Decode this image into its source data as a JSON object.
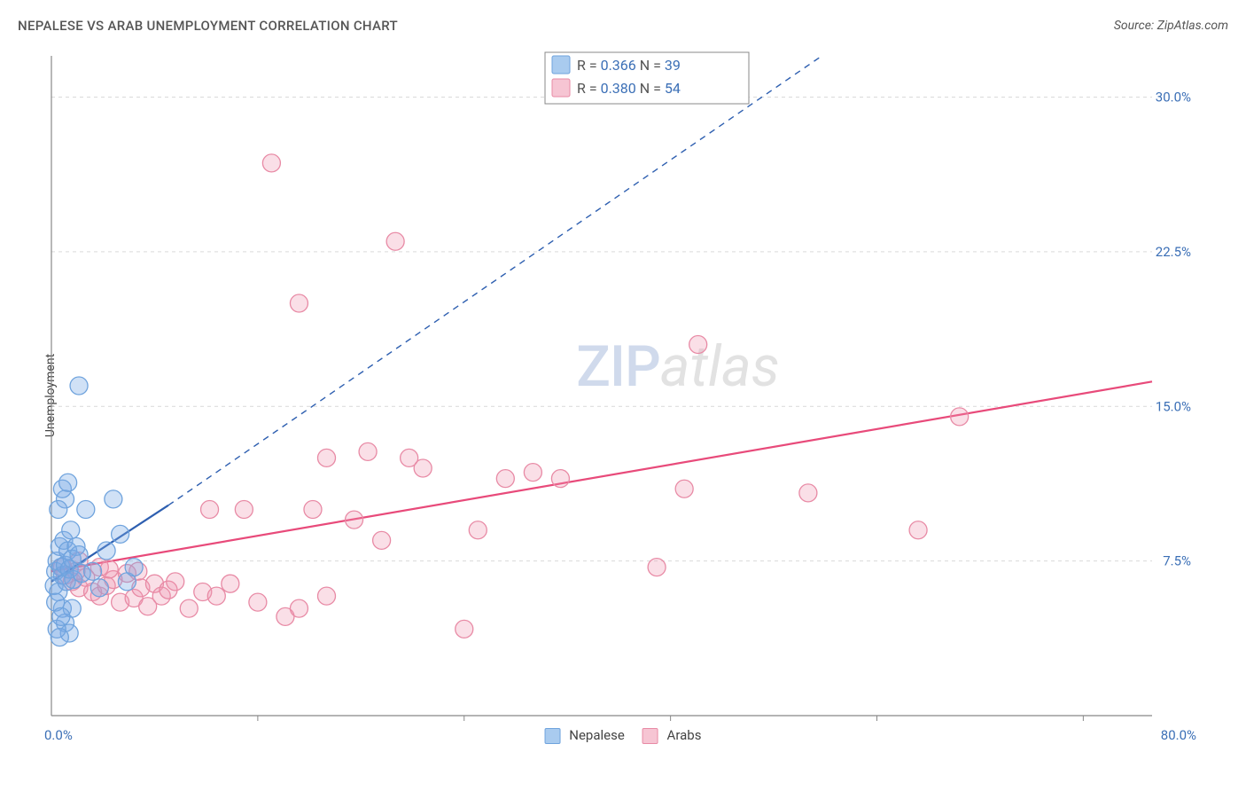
{
  "header": {
    "title": "NEPALESE VS ARAB UNEMPLOYMENT CORRELATION CHART",
    "source": "Source: ZipAtlas.com"
  },
  "ylabel": "Unemployment",
  "watermark": {
    "zip": "ZIP",
    "atlas": "atlas"
  },
  "chart": {
    "type": "scatter",
    "xlim": [
      0,
      80
    ],
    "ylim": [
      0,
      32
    ],
    "xtick_labels": {
      "min": "0.0%",
      "max": "80.0%"
    },
    "ytick_positions": [
      7.5,
      15.0,
      22.5,
      30.0
    ],
    "ytick_labels": [
      "7.5%",
      "15.0%",
      "22.5%",
      "30.0%"
    ],
    "xtick_minor": [
      15,
      30,
      45,
      60,
      75
    ],
    "grid_color": "#d9d9d9",
    "axis_color": "#888888",
    "background_color": "#ffffff",
    "marker_radius": 10,
    "marker_stroke_width": 1.3,
    "series": [
      {
        "name": "Nepalese",
        "label": "Nepalese",
        "fill": "rgba(120,170,230,0.35)",
        "stroke": "#6fa3dd",
        "swatch_fill": "#a9cbef",
        "swatch_border": "#6fa3dd",
        "R": "0.366",
        "N": "39",
        "trend": {
          "x1": 0,
          "y1": 6.5,
          "x2": 8.5,
          "y2": 10.2,
          "dashed_ext": {
            "x2": 56,
            "y2": 32
          },
          "color": "#2e5fb0",
          "width": 2.2
        },
        "points": [
          [
            0.2,
            6.3
          ],
          [
            0.3,
            7.0
          ],
          [
            0.4,
            7.5
          ],
          [
            0.5,
            6.0
          ],
          [
            0.6,
            8.2
          ],
          [
            0.7,
            7.2
          ],
          [
            0.8,
            6.8
          ],
          [
            0.9,
            8.5
          ],
          [
            1.0,
            7.3
          ],
          [
            1.1,
            6.5
          ],
          [
            1.2,
            8.0
          ],
          [
            1.3,
            7.1
          ],
          [
            1.4,
            9.0
          ],
          [
            1.5,
            7.6
          ],
          [
            1.6,
            6.6
          ],
          [
            0.8,
            5.2
          ],
          [
            1.0,
            4.5
          ],
          [
            1.3,
            4.0
          ],
          [
            0.4,
            4.2
          ],
          [
            0.6,
            3.8
          ],
          [
            1.8,
            8.2
          ],
          [
            2.0,
            7.8
          ],
          [
            2.2,
            6.9
          ],
          [
            2.5,
            10.0
          ],
          [
            3.0,
            7.0
          ],
          [
            3.5,
            6.2
          ],
          [
            4.0,
            8.0
          ],
          [
            4.5,
            10.5
          ],
          [
            5.0,
            8.8
          ],
          [
            1.0,
            10.5
          ],
          [
            0.5,
            10.0
          ],
          [
            0.8,
            11.0
          ],
          [
            1.2,
            11.3
          ],
          [
            2.0,
            16.0
          ],
          [
            5.5,
            6.5
          ],
          [
            6.0,
            7.2
          ],
          [
            0.3,
            5.5
          ],
          [
            1.5,
            5.2
          ],
          [
            0.7,
            4.8
          ]
        ]
      },
      {
        "name": "Arabs",
        "label": "Arabs",
        "fill": "rgba(240,150,175,0.30)",
        "stroke": "#e88aa5",
        "swatch_fill": "#f6c5d3",
        "swatch_border": "#e88aa5",
        "R": "0.380",
        "N": "54",
        "trend": {
          "x1": 0,
          "y1": 7.0,
          "x2": 80,
          "y2": 16.2,
          "color": "#e84a7a",
          "width": 2.2
        },
        "points": [
          [
            1.0,
            6.8
          ],
          [
            1.5,
            6.5
          ],
          [
            2.0,
            6.2
          ],
          [
            2.5,
            6.7
          ],
          [
            3.0,
            6.0
          ],
          [
            3.5,
            5.8
          ],
          [
            4.0,
            6.3
          ],
          [
            4.5,
            6.6
          ],
          [
            5.0,
            5.5
          ],
          [
            5.5,
            6.9
          ],
          [
            6.0,
            5.7
          ],
          [
            6.5,
            6.2
          ],
          [
            7.0,
            5.3
          ],
          [
            7.5,
            6.4
          ],
          [
            8.0,
            5.8
          ],
          [
            8.5,
            6.1
          ],
          [
            9.0,
            6.5
          ],
          [
            10.0,
            5.2
          ],
          [
            11.0,
            6.0
          ],
          [
            11.5,
            10.0
          ],
          [
            12.0,
            5.8
          ],
          [
            13.0,
            6.4
          ],
          [
            14.0,
            10.0
          ],
          [
            15.0,
            5.5
          ],
          [
            16.0,
            26.8
          ],
          [
            17.0,
            4.8
          ],
          [
            18.0,
            5.2
          ],
          [
            18.0,
            20.0
          ],
          [
            19.0,
            10.0
          ],
          [
            20.0,
            5.8
          ],
          [
            20.0,
            12.5
          ],
          [
            22.0,
            9.5
          ],
          [
            23.0,
            12.8
          ],
          [
            24.0,
            8.5
          ],
          [
            25.0,
            23.0
          ],
          [
            26.0,
            12.5
          ],
          [
            27.0,
            12.0
          ],
          [
            30.0,
            4.2
          ],
          [
            31.0,
            9.0
          ],
          [
            33.0,
            11.5
          ],
          [
            35.0,
            11.8
          ],
          [
            37.0,
            11.5
          ],
          [
            44.0,
            7.2
          ],
          [
            46.0,
            11.0
          ],
          [
            47.0,
            18.0
          ],
          [
            55.0,
            10.8
          ],
          [
            63.0,
            9.0
          ],
          [
            66.0,
            14.5
          ],
          [
            2.0,
            7.5
          ],
          [
            3.5,
            7.2
          ],
          [
            1.8,
            7.0
          ],
          [
            4.2,
            7.1
          ],
          [
            6.3,
            7.0
          ],
          [
            0.8,
            7.2
          ]
        ]
      }
    ]
  },
  "bottom_legend": [
    {
      "label": "Nepalese",
      "fill": "#a9cbef",
      "border": "#6fa3dd"
    },
    {
      "label": "Arabs",
      "fill": "#f6c5d3",
      "border": "#e88aa5"
    }
  ]
}
